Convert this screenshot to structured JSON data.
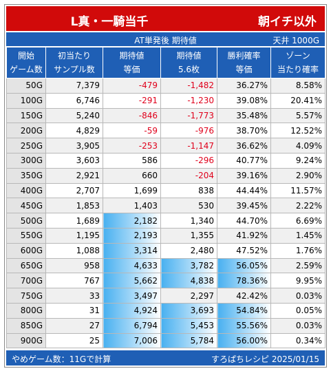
{
  "title": {
    "left": "L真・一騎当千",
    "right": "朝イチ以外"
  },
  "subheader": {
    "center": "AT単発後 期待値",
    "right": "天井 1000G"
  },
  "table": {
    "header": [
      [
        "開始",
        "ゲーム数"
      ],
      [
        "初当たり",
        "サンプル数"
      ],
      [
        "期待値",
        "等価"
      ],
      [
        "期待値",
        "5.6枚"
      ],
      [
        "勝利確率",
        "等価"
      ],
      [
        "ゾーン",
        "当たり確率"
      ]
    ],
    "rows": [
      [
        "50G",
        "7,379",
        "-479",
        "-1,482",
        "36.27%",
        "8.58%"
      ],
      [
        "100G",
        "6,746",
        "-291",
        "-1,230",
        "39.08%",
        "20.41%"
      ],
      [
        "150G",
        "5,240",
        "-846",
        "-1,773",
        "35.48%",
        "5.57%"
      ],
      [
        "200G",
        "4,829",
        "-59",
        "-976",
        "38.70%",
        "12.52%"
      ],
      [
        "250G",
        "3,905",
        "-253",
        "-1,147",
        "36.62%",
        "4.09%"
      ],
      [
        "300G",
        "3,603",
        "586",
        "-296",
        "40.77%",
        "9.24%"
      ],
      [
        "350G",
        "2,921",
        "660",
        "-204",
        "39.16%",
        "2.90%"
      ],
      [
        "400G",
        "2,707",
        "1,699",
        "838",
        "44.44%",
        "11.57%"
      ],
      [
        "450G",
        "1,853",
        "1,403",
        "530",
        "39.45%",
        "2.22%"
      ],
      [
        "500G",
        "1,689",
        "2,182",
        "1,340",
        "44.70%",
        "6.69%"
      ],
      [
        "550G",
        "1,195",
        "2,193",
        "1,355",
        "41.92%",
        "1.45%"
      ],
      [
        "600G",
        "1,088",
        "3,314",
        "2,480",
        "47.52%",
        "1.76%"
      ],
      [
        "650G",
        "958",
        "4,633",
        "3,782",
        "56.05%",
        "2.59%"
      ],
      [
        "700G",
        "767",
        "5,662",
        "4,838",
        "78.36%",
        "9.95%"
      ],
      [
        "750G",
        "33",
        "3,497",
        "2,297",
        "42.42%",
        "0.03%"
      ],
      [
        "800G",
        "31",
        "4,924",
        "3,693",
        "54.84%",
        "0.05%"
      ],
      [
        "850G",
        "27",
        "6,794",
        "5,453",
        "55.56%",
        "0.03%"
      ],
      [
        "900G",
        "25",
        "7,006",
        "5,784",
        "56.00%",
        "0.34%"
      ]
    ]
  },
  "footer": {
    "left": "やめゲーム数：11Gで計算",
    "right": "すろぱちレシピ 2025/01/15"
  }
}
